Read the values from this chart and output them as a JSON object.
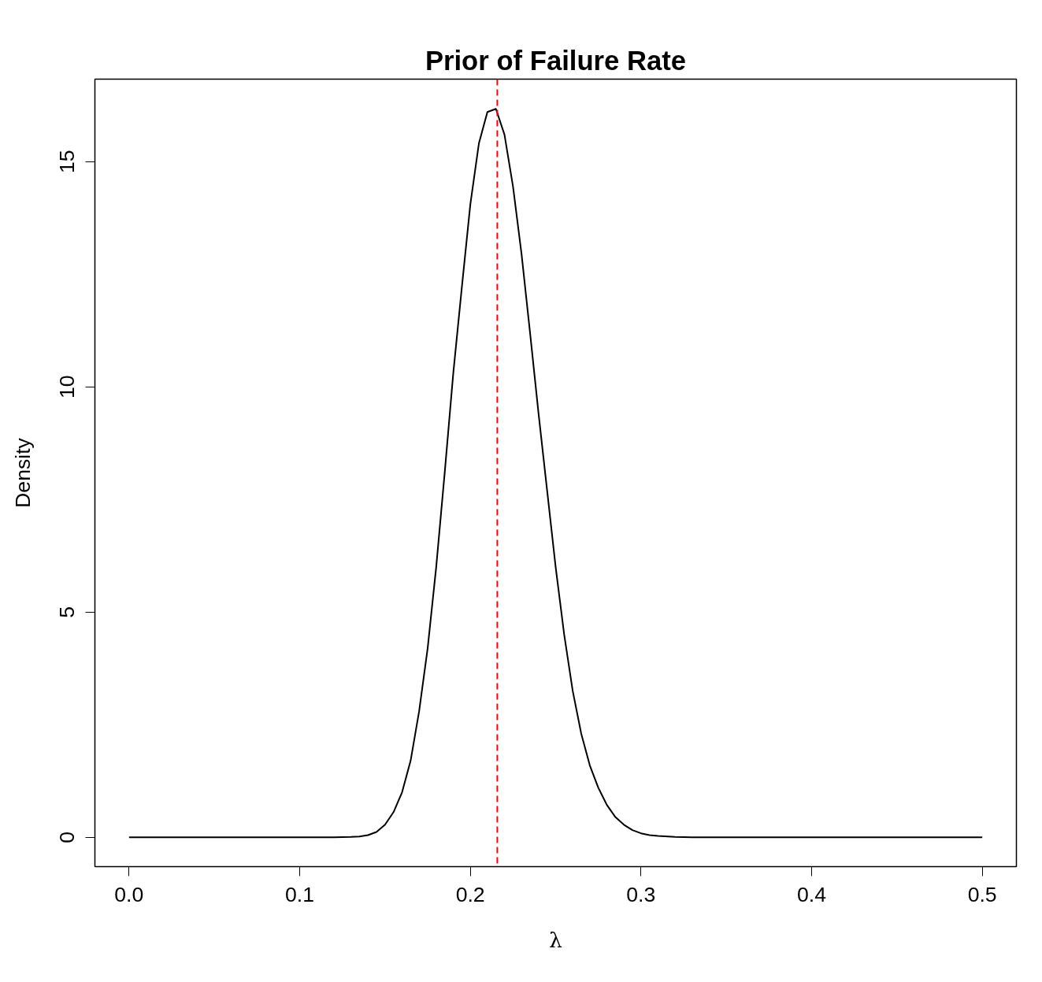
{
  "chart_data": {
    "type": "line",
    "title": "Prior of Failure Rate",
    "xlabel": "λ",
    "ylabel": "Density",
    "x": [
      0,
      0.05,
      0.1,
      0.12,
      0.13,
      0.135,
      0.14,
      0.145,
      0.15,
      0.155,
      0.16,
      0.165,
      0.17,
      0.175,
      0.18,
      0.185,
      0.19,
      0.195,
      0.2,
      0.205,
      0.21,
      0.215,
      0.22,
      0.225,
      0.23,
      0.235,
      0.24,
      0.245,
      0.25,
      0.255,
      0.26,
      0.265,
      0.27,
      0.275,
      0.28,
      0.285,
      0.29,
      0.295,
      0.3,
      0.305,
      0.31,
      0.32,
      0.33,
      0.35,
      0.4,
      0.45,
      0.5
    ],
    "series": [
      {
        "color": "#000000",
        "values": [
          0,
          0,
          0,
          0,
          0.01,
          0.02,
          0.05,
          0.12,
          0.28,
          0.56,
          1.0,
          1.7,
          2.8,
          4.2,
          6.0,
          8.1,
          10.3,
          12.2,
          14.05,
          15.4,
          16.1,
          16.17,
          15.6,
          14.45,
          12.95,
          11.2,
          9.4,
          7.7,
          6.0,
          4.5,
          3.25,
          2.3,
          1.6,
          1.1,
          0.72,
          0.45,
          0.28,
          0.16,
          0.09,
          0.05,
          0.03,
          0.01,
          0,
          0,
          0,
          0,
          0
        ]
      }
    ],
    "xlim": [
      -0.02,
      0.52
    ],
    "ylim": [
      -0.65,
      16.83
    ],
    "xticks": [
      {
        "value": 0,
        "label": "0.0"
      },
      0.1,
      0.2,
      0.3,
      0.4,
      0.5
    ],
    "yticks": [
      0,
      5,
      10,
      15
    ],
    "ref_lines": [
      {
        "axis": "x",
        "value": 0.2158,
        "color": "#ff0000",
        "line_style": "dashed"
      }
    ],
    "grid": false,
    "marker": "none",
    "line_style": "solid"
  }
}
